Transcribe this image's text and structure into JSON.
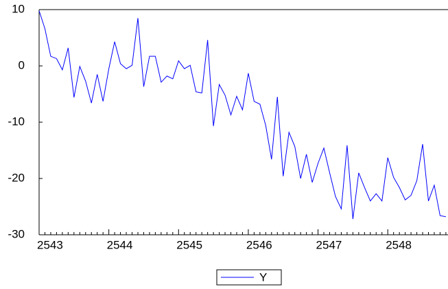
{
  "chart_data": {
    "type": "line",
    "categories": [
      "2543",
      null,
      null,
      null,
      null,
      null,
      null,
      null,
      null,
      null,
      null,
      null,
      "2544",
      null,
      null,
      null,
      null,
      null,
      null,
      null,
      null,
      null,
      null,
      null,
      "2545",
      null,
      null,
      null,
      null,
      null,
      null,
      null,
      null,
      null,
      null,
      null,
      "2546",
      null,
      null,
      null,
      null,
      null,
      null,
      null,
      null,
      null,
      null,
      null,
      "2547",
      null,
      null,
      null,
      null,
      null,
      null,
      null,
      null,
      null,
      null,
      null,
      "2548",
      null,
      null,
      null,
      null,
      null,
      null,
      null,
      null,
      null,
      null
    ],
    "series": [
      {
        "name": "Y",
        "color": "#0000ff",
        "values": [
          9.8,
          6.6,
          1.7,
          1.3,
          -0.7,
          3.2,
          -5.6,
          -0.1,
          -2.7,
          -6.6,
          -1.5,
          -6.3,
          -0.5,
          4.3,
          0.4,
          -0.5,
          0.1,
          8.5,
          -3.7,
          1.7,
          1.7,
          -2.9,
          -1.8,
          -2.3,
          0.9,
          -0.5,
          0.1,
          -4.6,
          -4.8,
          4.6,
          -10.7,
          -3.3,
          -5.2,
          -8.7,
          -5.4,
          -7.8,
          -1.3,
          -6.3,
          -6.8,
          -10.6,
          -16.6,
          -5.5,
          -19.6,
          -11.8,
          -14.3,
          -20,
          -15.7,
          -20.7,
          -17.3,
          -14.6,
          -19,
          -23.2,
          -25.4,
          -14.1,
          -27.2,
          -19,
          -21.6,
          -24,
          -22.7,
          -24,
          -16.3,
          -19.8,
          -21.6,
          -23.8,
          -23,
          -20.4,
          -13.9,
          -24,
          -21.2,
          -26.6,
          -26.8
        ]
      }
    ],
    "ylim": [
      -30,
      10
    ],
    "yticks": [
      -30,
      -20,
      -10,
      0,
      10
    ],
    "grid": false
  }
}
